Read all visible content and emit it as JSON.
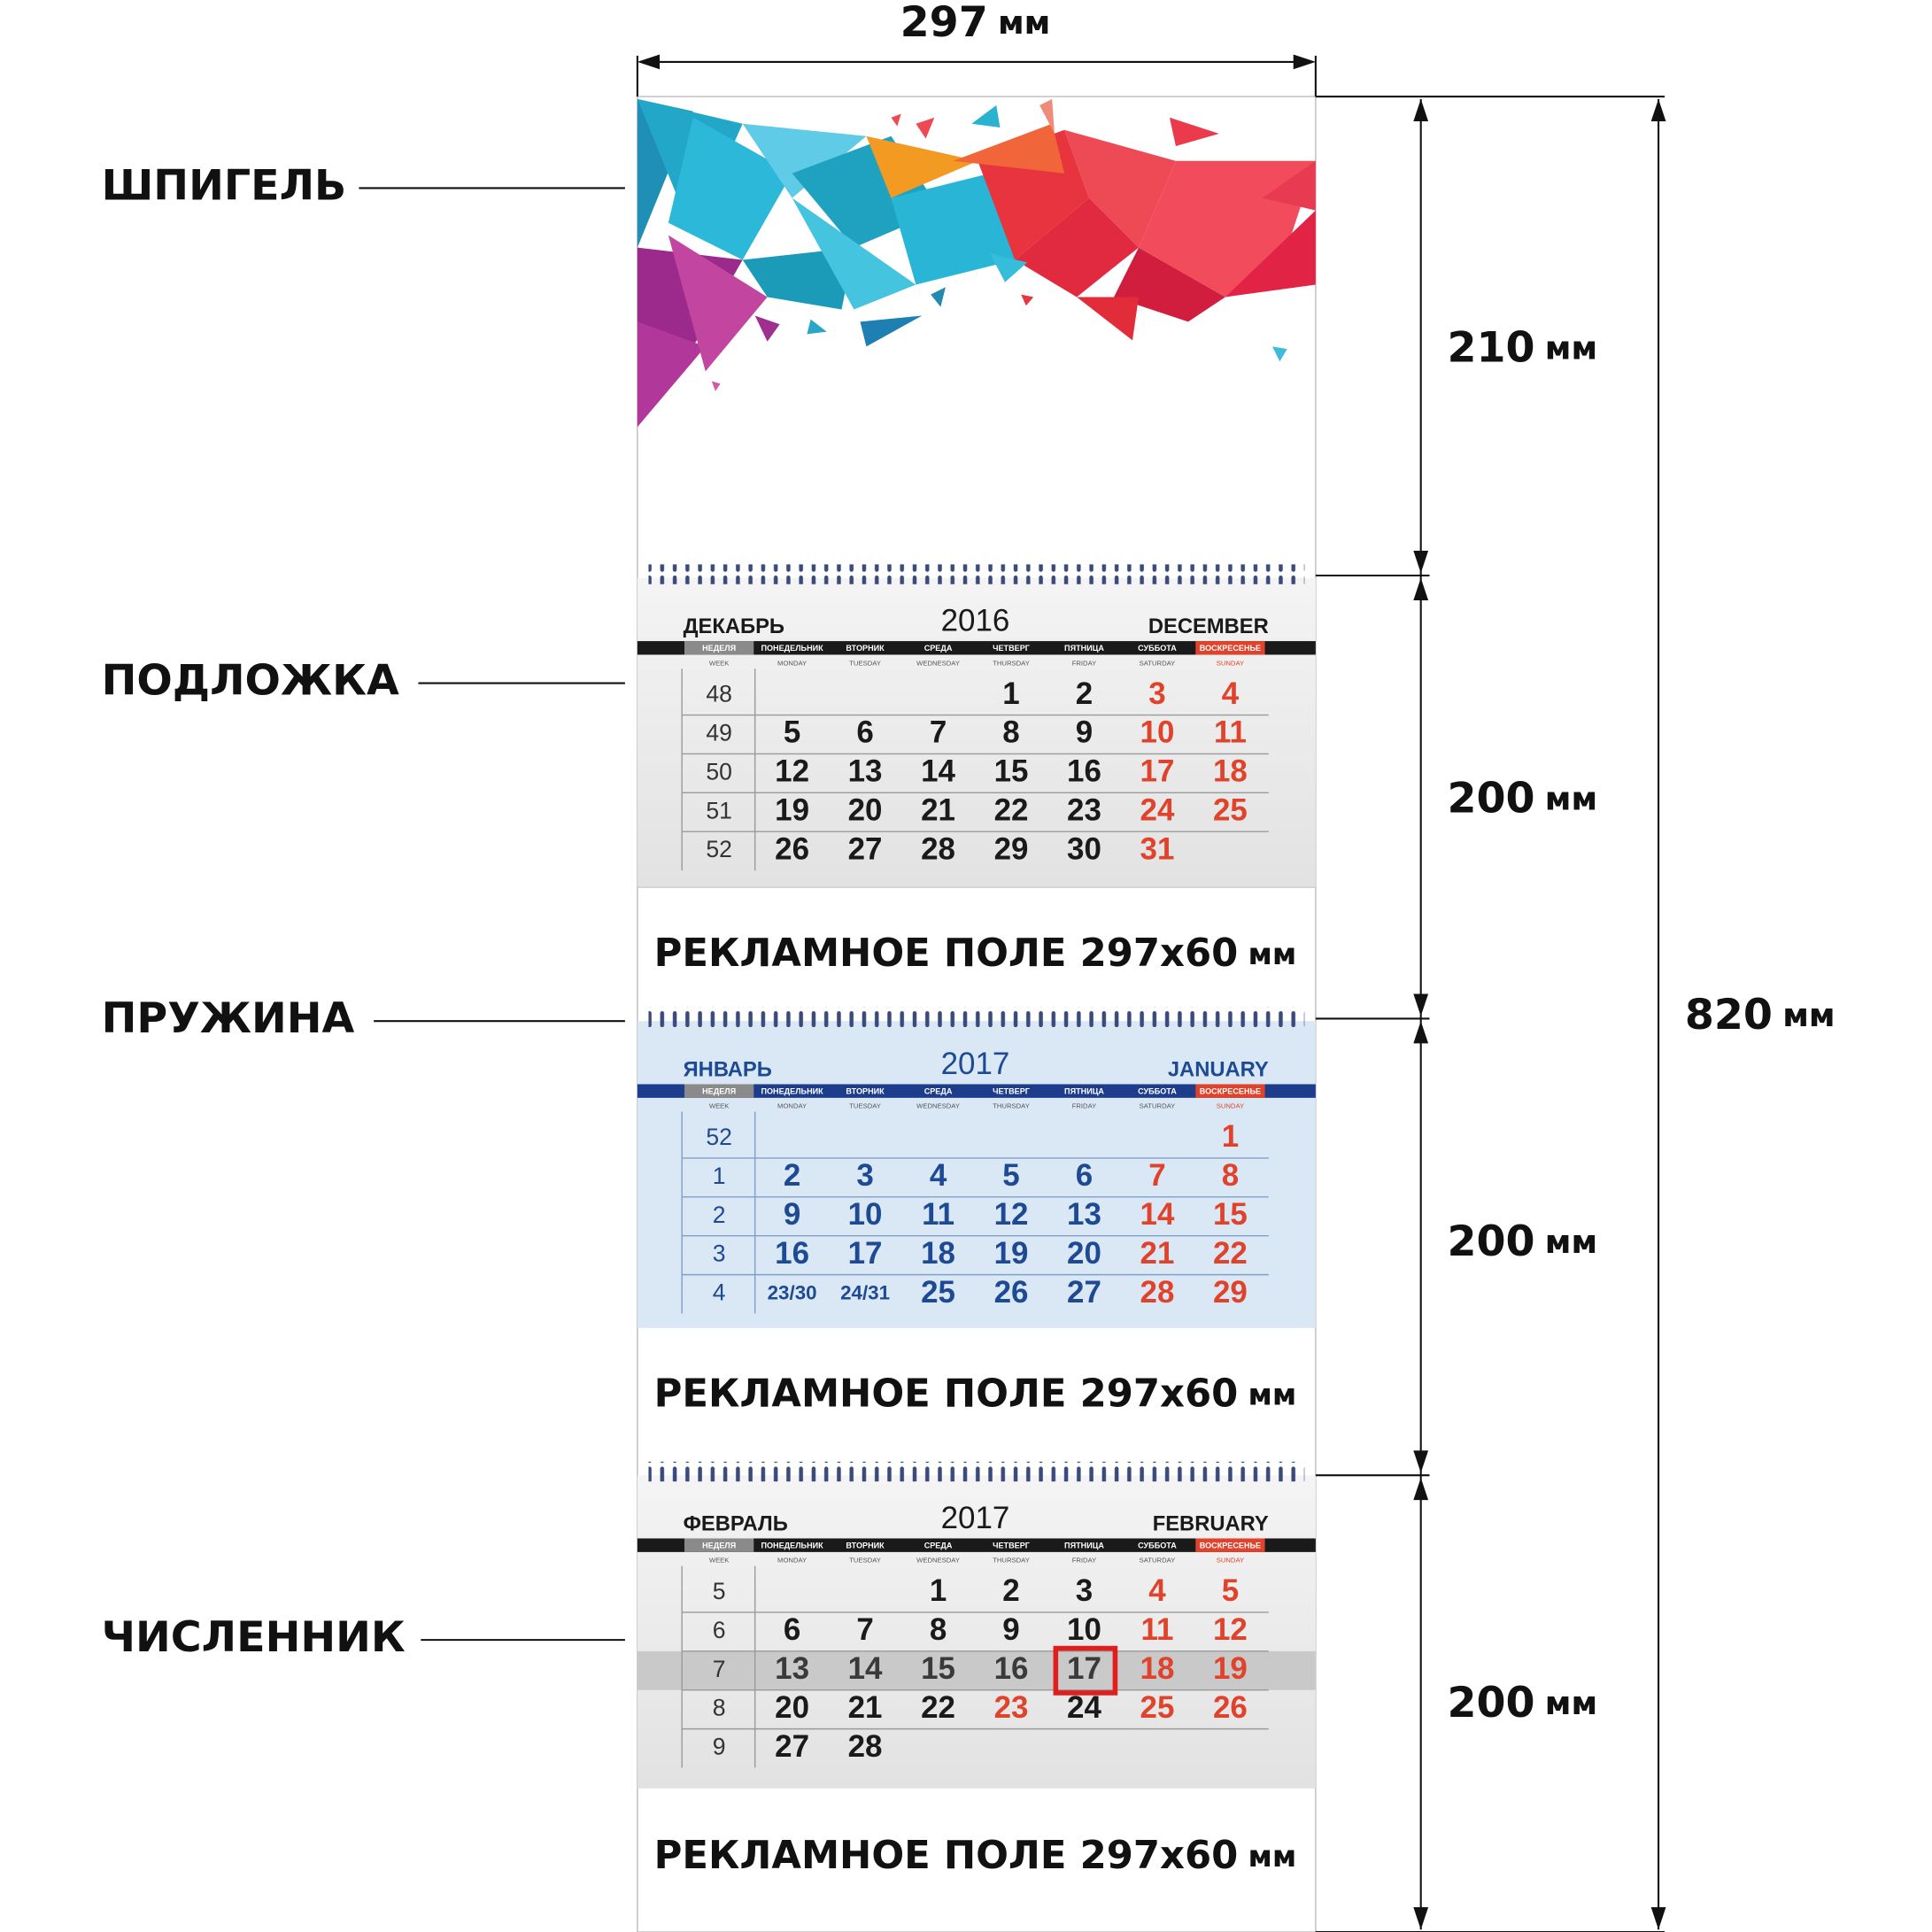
{
  "width_dimension": {
    "number": "297",
    "unit": "мм"
  },
  "height_dimensions": [
    {
      "number": "210",
      "unit": "мм"
    },
    {
      "number": "200",
      "unit": "мм"
    },
    {
      "number": "200",
      "unit": "мм"
    },
    {
      "number": "200",
      "unit": "мм"
    }
  ],
  "total_dimension": {
    "number": "820",
    "unit": "мм"
  },
  "parts": [
    "ШПИГЕЛЬ",
    "ПОДЛОЖКА",
    "ПРУЖИНА",
    "ЧИСЛЕННИК"
  ],
  "calendars": [
    {
      "month_ru": "ДЕКАБРЬ",
      "year": "2016",
      "month_en": "DECEMBER",
      "weekdays_ru": [
        "НЕДЕЛЯ",
        "ПОНЕДЕЛЬНИК",
        "ВТОРНИК",
        "СРЕДА",
        "ЧЕТВЕРГ",
        "ПЯТНИЦА",
        "СУББОТА",
        "ВОСКРЕСЕНЬЕ"
      ],
      "weekdays_en": [
        "WEEK",
        "MONDAY",
        "TUESDAY",
        "WEDNESDAY",
        "THURSDAY",
        "FRIDAY",
        "SATURDAY",
        "SUNDAY"
      ],
      "weeks": [
        "48",
        "49",
        "50",
        "51",
        "52"
      ],
      "days": [
        [
          null,
          null,
          null,
          "1",
          "2",
          "3",
          "4"
        ],
        [
          "5",
          "6",
          "7",
          "8",
          "9",
          "10",
          "11"
        ],
        [
          "12",
          "13",
          "14",
          "15",
          "16",
          "17",
          "18"
        ],
        [
          "19",
          "20",
          "21",
          "22",
          "23",
          "24",
          "25"
        ],
        [
          "26",
          "27",
          "28",
          "29",
          "30",
          "31",
          null
        ]
      ]
    },
    {
      "month_ru": "ЯНВАРЬ",
      "year": "2017",
      "month_en": "JANUARY",
      "weekdays_ru": [
        "НЕДЕЛЯ",
        "ПОНЕДЕЛЬНИК",
        "ВТОРНИК",
        "СРЕДА",
        "ЧЕТВЕРГ",
        "ПЯТНИЦА",
        "СУББОТА",
        "ВОСКРЕСЕНЬЕ"
      ],
      "weekdays_en": [
        "WEEK",
        "MONDAY",
        "TUESDAY",
        "WEDNESDAY",
        "THURSDAY",
        "FRIDAY",
        "SATURDAY",
        "SUNDAY"
      ],
      "weeks": [
        "52",
        "1",
        "2",
        "3",
        "4"
      ],
      "days": [
        [
          null,
          null,
          null,
          null,
          null,
          null,
          "1"
        ],
        [
          "2",
          "3",
          "4",
          "5",
          "6",
          "7",
          "8"
        ],
        [
          "9",
          "10",
          "11",
          "12",
          "13",
          "14",
          "15"
        ],
        [
          "16",
          "17",
          "18",
          "19",
          "20",
          "21",
          "22"
        ],
        [
          "23/30",
          "24/31",
          "25",
          "26",
          "27",
          "28",
          "29"
        ]
      ]
    },
    {
      "month_ru": "ФЕВРАЛЬ",
      "year": "2017",
      "month_en": "FEBRUARY",
      "weekdays_ru": [
        "НЕДЕЛЯ",
        "ПОНЕДЕЛЬНИК",
        "ВТОРНИК",
        "СРЕДА",
        "ЧЕТВЕРГ",
        "ПЯТНИЦА",
        "СУББОТА",
        "ВОСКРЕСЕНЬЕ"
      ],
      "weekdays_en": [
        "WEEK",
        "MONDAY",
        "TUESDAY",
        "WEDNESDAY",
        "THURSDAY",
        "FRIDAY",
        "SATURDAY",
        "SUNDAY"
      ],
      "weeks": [
        "5",
        "6",
        "7",
        "8",
        "9"
      ],
      "days": [
        [
          null,
          null,
          "1",
          "2",
          "3",
          "4",
          "5"
        ],
        [
          "6",
          "7",
          "8",
          "9",
          "10",
          "11",
          "12"
        ],
        [
          "13",
          "14",
          "15",
          "16",
          "17",
          "18",
          "19"
        ],
        [
          "20",
          "21",
          "22",
          "23",
          "24",
          "25",
          "26"
        ],
        [
          "27",
          "28",
          null,
          null,
          null,
          null,
          null
        ]
      ]
    }
  ],
  "ad_fields": [
    {
      "text": "РЕКЛАМНОЕ ПОЛЕ 297x60",
      "unit": "мм"
    },
    {
      "text": "РЕКЛАМНОЕ ПОЛЕ 297x60",
      "unit": "мм"
    },
    {
      "text": "РЕКЛАМНОЕ ПОЛЕ 297x60",
      "unit": "мм"
    }
  ]
}
